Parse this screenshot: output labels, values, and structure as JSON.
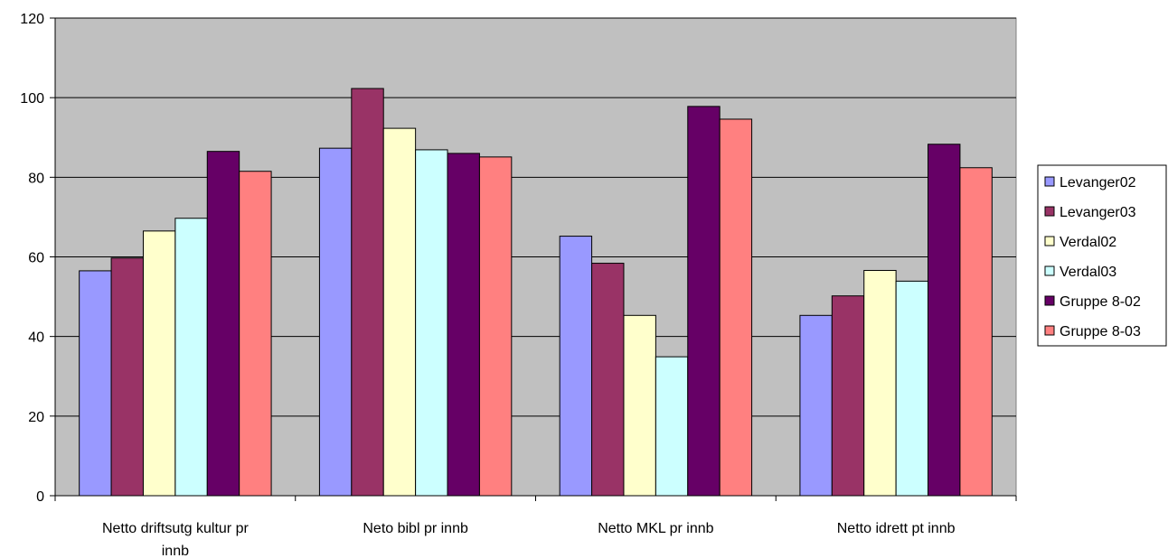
{
  "chart_data": {
    "type": "bar",
    "title": "",
    "xlabel": "",
    "ylabel": "",
    "ylim": [
      0,
      120
    ],
    "yticks": [
      0,
      20,
      40,
      60,
      80,
      100,
      120
    ],
    "grid": true,
    "legend_position": "right",
    "categories": [
      [
        "Netto driftsutg kultur pr",
        "innb"
      ],
      [
        "Neto bibl pr innb"
      ],
      [
        "Netto MKL pr innb"
      ],
      [
        "Netto idrett pt innb"
      ]
    ],
    "series": [
      {
        "name": "Levanger02",
        "color": "#9999ff",
        "values": [
          56.5,
          87.3,
          65.2,
          45.3
        ]
      },
      {
        "name": "Levanger03",
        "color": "#993366",
        "values": [
          59.7,
          102.3,
          58.4,
          50.2
        ]
      },
      {
        "name": "Verdal02",
        "color": "#ffffcc",
        "values": [
          66.5,
          92.3,
          45.3,
          56.6
        ]
      },
      {
        "name": "Verdal03",
        "color": "#ccffff",
        "values": [
          69.7,
          86.9,
          34.9,
          53.9
        ]
      },
      {
        "name": "Gruppe 8-02",
        "color": "#660066",
        "values": [
          86.5,
          86.0,
          97.8,
          88.3
        ]
      },
      {
        "name": "Gruppe 8-03",
        "color": "#ff8080",
        "values": [
          81.5,
          85.1,
          94.6,
          82.4
        ]
      }
    ],
    "plot_background": "#c0c0c0"
  }
}
